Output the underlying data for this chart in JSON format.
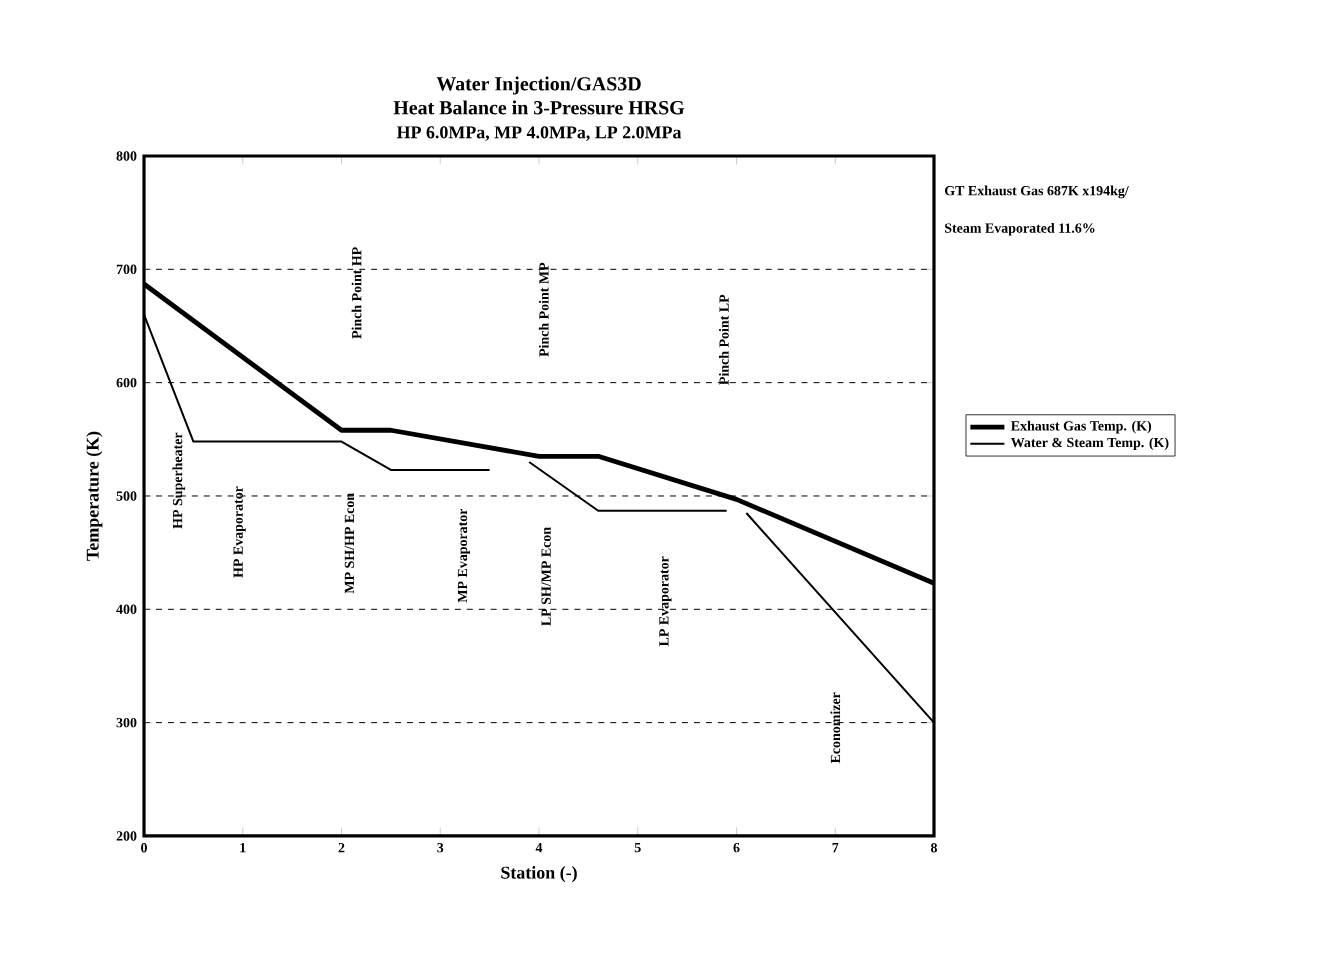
{
  "chart_data": {
    "type": "line",
    "title": "Water Injection/GAS3D",
    "subtitle": "Heat Balance in 3-Pressure HRSG",
    "xlabel": "Station (-)",
    "ylabel": "Temperature (K)",
    "xlim": [
      0,
      8
    ],
    "ylim": [
      200,
      800
    ],
    "xticks": [
      0,
      1,
      2,
      3,
      4,
      5,
      6,
      7,
      8
    ],
    "yticks": [
      200,
      300,
      400,
      500,
      600,
      700,
      800
    ],
    "grid": "y",
    "legend": "right",
    "line_style": "solid",
    "marker": "none",
    "series": [
      {
        "name": "Exhaust Gas Temp. (K)",
        "color": "#000000",
        "x": [
          0,
          2,
          2.5,
          4,
          4.6,
          6,
          8
        ],
        "values": [
          687,
          558,
          558,
          535,
          535,
          497,
          423
        ]
      },
      {
        "name": "Water & Steam Temp. (K)",
        "color": "#000000",
        "x": [
          0,
          0.5,
          2,
          2.5,
          3.5,
          3.75,
          3.9,
          4.6,
          5.9,
          6,
          6.1,
          8
        ],
        "values": [
          660,
          548,
          548,
          523,
          523,
          null,
          530,
          487,
          487,
          null,
          485,
          300
        ]
      }
    ],
    "annotations": [
      "HP 6.0MPa, MP 4.0MPa, LP 2.0MPa",
      "GT Exhaust Gas 687K x194kg/",
      "Steam Evaporated 11.6%",
      "HP Superheater",
      "HP Evaporator",
      "MP SH/HP Econ",
      "MP Evaporator",
      "LP SH/MP Econ",
      "LP Evaporator",
      "Economizer",
      "Pinch Point HP",
      "Pinch Point MP",
      "Pinch Point LP"
    ]
  }
}
